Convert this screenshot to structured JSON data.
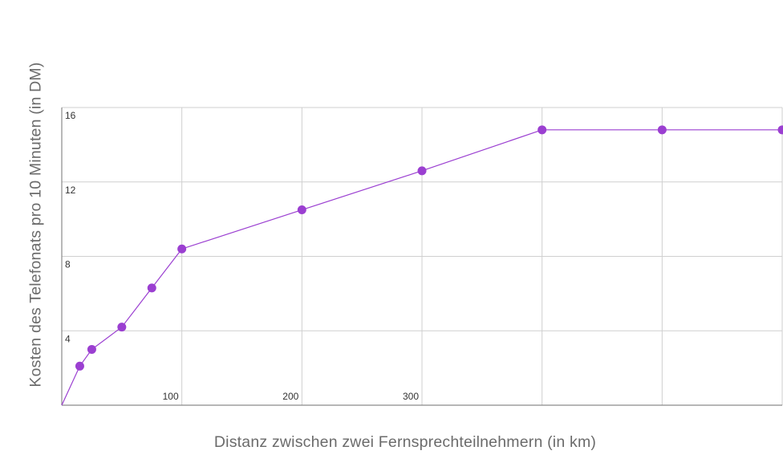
{
  "chart_data": {
    "type": "line",
    "xlabel": "Distanz zwischen zwei Fernsprechteilnehmern (in km)",
    "ylabel": "Kosten des Telefonats pro 10 Minuten (in DM)",
    "x_ticks": [
      100,
      200,
      300
    ],
    "y_ticks": [
      4,
      8,
      12,
      16
    ],
    "xlim": [
      0,
      600
    ],
    "ylim": [
      0,
      16
    ],
    "grid": true,
    "series": [
      {
        "color": "#9b3fd1",
        "points": [
          {
            "x": 0,
            "y": 0
          },
          {
            "x": 15,
            "y": 2.1
          },
          {
            "x": 25,
            "y": 3.0
          },
          {
            "x": 50,
            "y": 4.2
          },
          {
            "x": 75,
            "y": 6.3
          },
          {
            "x": 100,
            "y": 8.4
          },
          {
            "x": 200,
            "y": 10.5
          },
          {
            "x": 300,
            "y": 12.6
          },
          {
            "x": 400,
            "y": 14.8
          },
          {
            "x": 500,
            "y": 14.8
          },
          {
            "x": 600,
            "y": 14.8
          }
        ]
      }
    ]
  }
}
